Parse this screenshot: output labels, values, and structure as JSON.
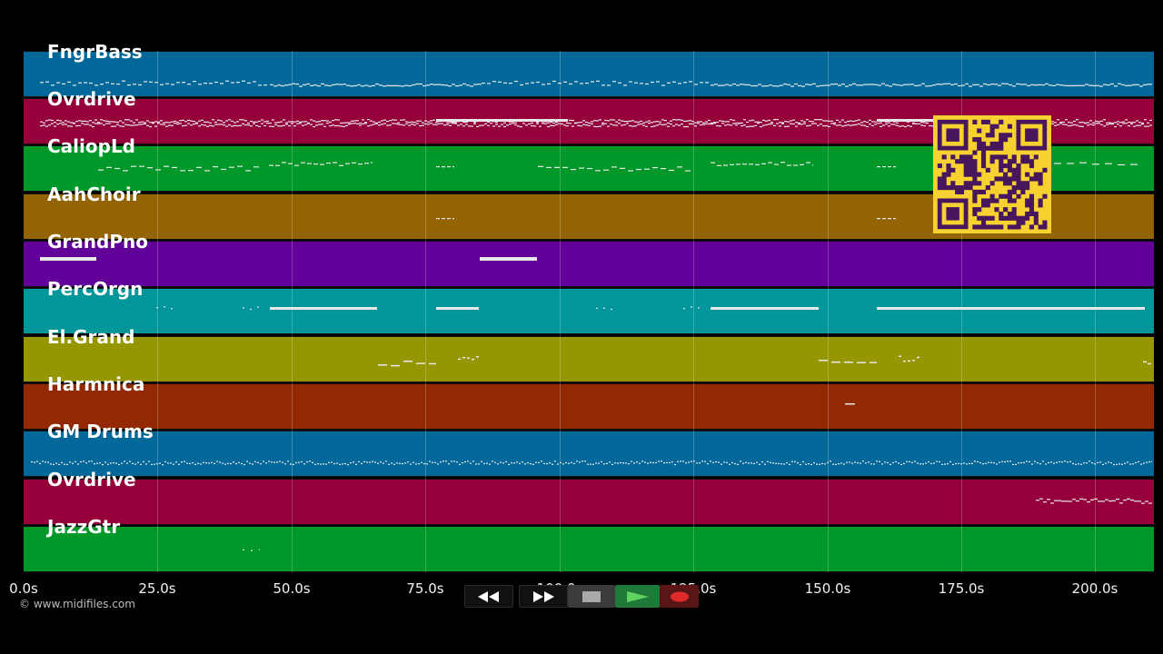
{
  "colors": {
    "blue": "#02689a",
    "crimson": "#95003a",
    "green": "#009828",
    "amber": "#946402",
    "purple": "#620199",
    "teal": "#01969a",
    "olive": "#959600",
    "rust": "#922902",
    "note": "#e8e8e8",
    "qr_bg": "#f6d12f",
    "qr_fg": "#47165c"
  },
  "tracks": [
    {
      "name": "FngrBass",
      "color": "blue"
    },
    {
      "name": "Ovrdrive",
      "color": "crimson"
    },
    {
      "name": "CaliopLd",
      "color": "green"
    },
    {
      "name": "AahChoir",
      "color": "amber"
    },
    {
      "name": "GrandPno",
      "color": "purple"
    },
    {
      "name": "PercOrgn",
      "color": "teal"
    },
    {
      "name": "El.Grand",
      "color": "olive"
    },
    {
      "name": "Harmnica",
      "color": "rust"
    },
    {
      "name": "GM Drums",
      "color": "blue"
    },
    {
      "name": "Ovrdrive",
      "color": "crimson"
    },
    {
      "name": "JazzGtr",
      "color": "green"
    }
  ],
  "timeline": {
    "ticks": [
      "0.0s",
      "25.0s",
      "50.0s",
      "75.0s",
      "100.0s",
      "125.0s",
      "150.0s",
      "175.0s",
      "200.0s"
    ]
  },
  "footer": {
    "copyright": "© www.midifiles.com"
  },
  "transport": {
    "rewind_icon": "rewind-icon",
    "fast_forward_icon": "fast-forward-icon",
    "stop_icon": "stop-icon",
    "play_icon": "play-icon",
    "record_icon": "record-icon"
  }
}
